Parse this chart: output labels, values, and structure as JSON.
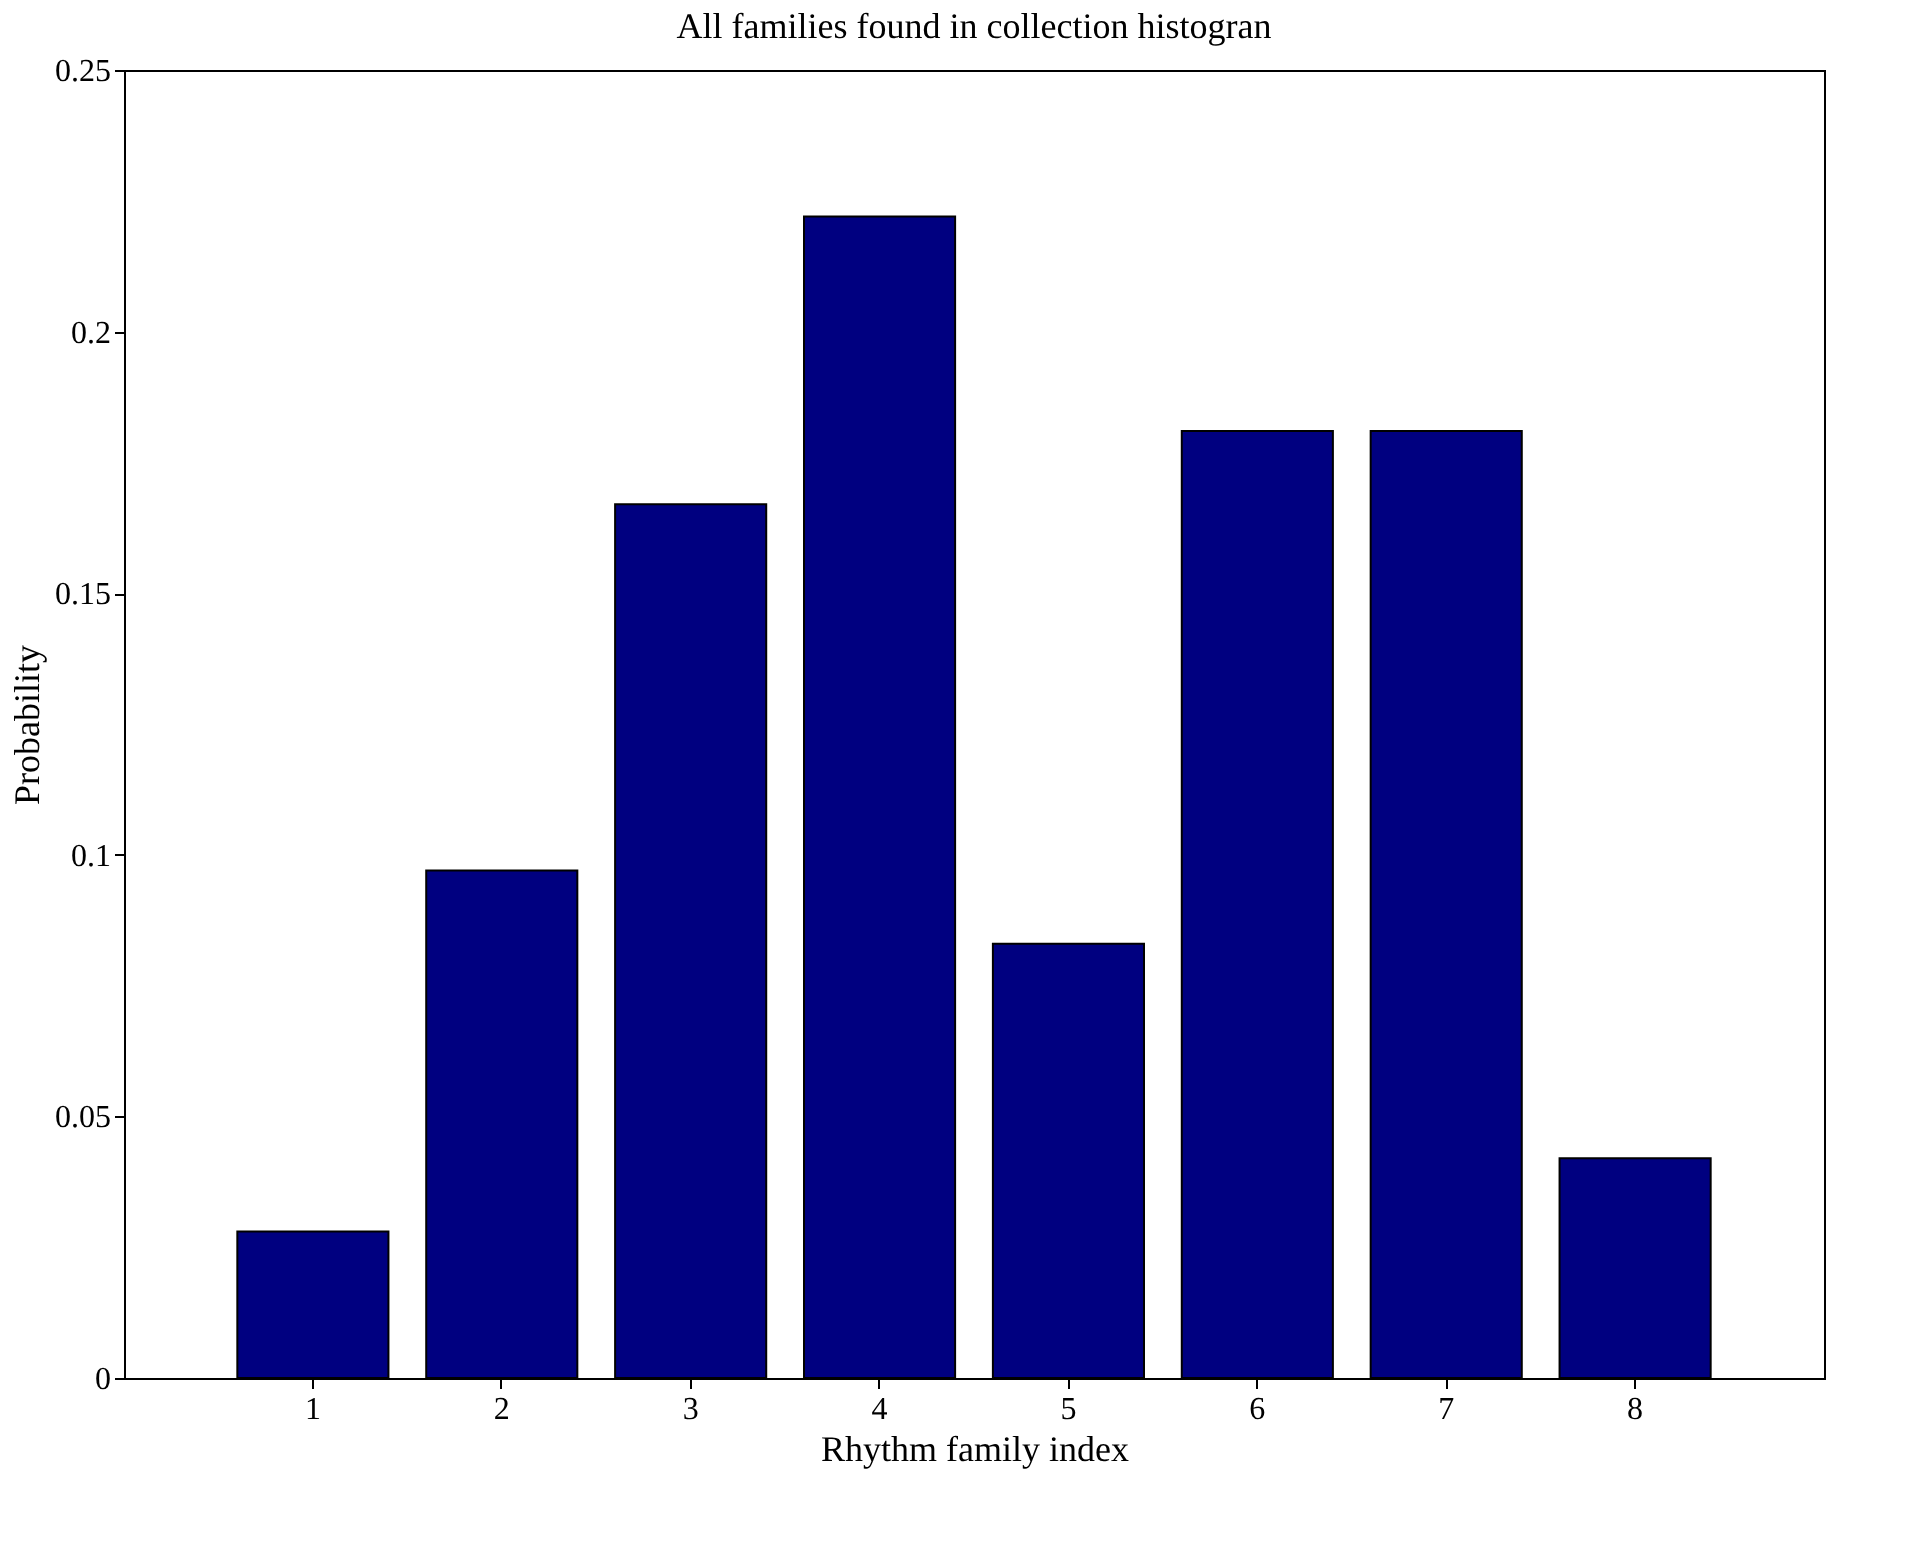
{
  "chart_data": {
    "type": "bar",
    "title": "All families found in collection histogran",
    "xlabel": "Rhythm family index",
    "ylabel": "Probability",
    "categories": [
      "1",
      "2",
      "3",
      "4",
      "5",
      "6",
      "7",
      "8"
    ],
    "values": [
      0.028,
      0.097,
      0.167,
      0.222,
      0.083,
      0.181,
      0.181,
      0.042
    ],
    "color": "#000080",
    "ylim": [
      0,
      0.25
    ],
    "yticks": [
      0,
      0.05,
      0.1,
      0.15,
      0.2,
      0.25
    ],
    "grid": false
  }
}
